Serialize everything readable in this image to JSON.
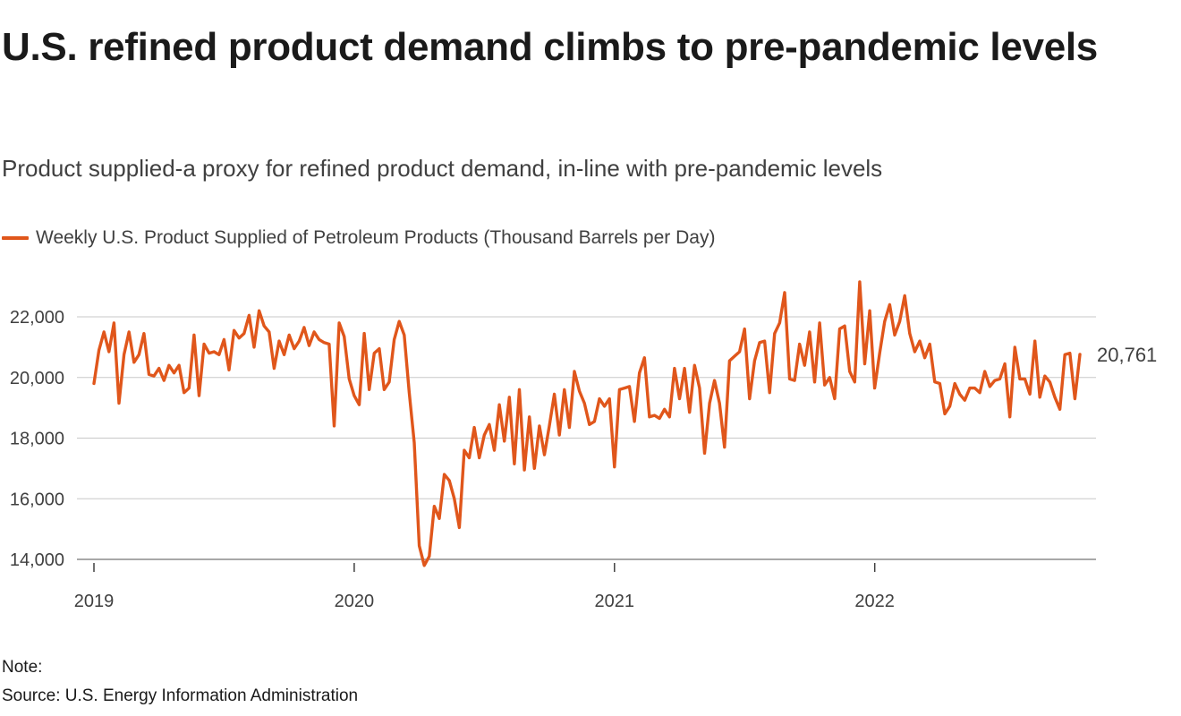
{
  "header": {
    "title": "U.S. refined product demand climbs to pre-pandemic levels",
    "subtitle": "Product supplied-a proxy for refined product demand, in-line with pre-pandemic levels"
  },
  "legend": {
    "label": "Weekly U.S. Product Supplied of Petroleum Products (Thousand Barrels per Day)",
    "color": "#e0561b"
  },
  "chart_data": {
    "type": "line",
    "title": "U.S. refined product demand climbs to pre-pandemic levels",
    "xlabel": "",
    "ylabel": "",
    "xlim": [
      2019.0,
      2022.9
    ],
    "ylim": [
      14000,
      22600
    ],
    "yticks": [
      14000,
      16000,
      18000,
      20000,
      22000
    ],
    "ytick_labels": [
      "14,000",
      "16,000",
      "18,000",
      "20,000",
      "22,000"
    ],
    "xticks": [
      2019,
      2020,
      2021,
      2022
    ],
    "xtick_labels": [
      "2019",
      "2020",
      "2021",
      "2022"
    ],
    "grid": true,
    "end_label": "20,761",
    "series": [
      {
        "name": "Weekly U.S. Product Supplied of Petroleum Products (Thousand Barrels per Day)",
        "color": "#e0561b",
        "x_start": 2019.0,
        "x_step": 0.01923,
        "values": [
          19800,
          20900,
          21500,
          20850,
          21800,
          19150,
          20750,
          21500,
          20500,
          20750,
          21450,
          20100,
          20050,
          20300,
          19900,
          20400,
          20150,
          20400,
          19500,
          19650,
          21400,
          19400,
          21100,
          20800,
          20850,
          20750,
          21250,
          20250,
          21550,
          21300,
          21450,
          22050,
          21000,
          22200,
          21700,
          21500,
          20300,
          21200,
          20750,
          21400,
          20950,
          21200,
          21650,
          21050,
          21500,
          21250,
          21150,
          21100,
          18400,
          21800,
          21350,
          19950,
          19400,
          19100,
          21450,
          19600,
          20800,
          20950,
          19600,
          19850,
          21250,
          21850,
          21400,
          19500,
          17850,
          14450,
          13800,
          14100,
          15750,
          15350,
          16800,
          16600,
          16000,
          15050,
          17600,
          17350,
          18350,
          17350,
          18100,
          18450,
          17600,
          19100,
          17900,
          19350,
          17150,
          19600,
          16950,
          18700,
          17000,
          18400,
          17450,
          18400,
          19450,
          18100,
          19600,
          18350,
          20200,
          19550,
          19150,
          18450,
          18550,
          19300,
          19050,
          19300,
          17050,
          19600,
          19650,
          19700,
          18550,
          20150,
          20650,
          18700,
          18750,
          18650,
          18950,
          18700,
          20300,
          19300,
          20300,
          18850,
          20400,
          19650,
          17500,
          19150,
          19900,
          19150,
          17700,
          20550,
          20700,
          20850,
          21600,
          19300,
          20550,
          21150,
          21200,
          19500,
          21450,
          21800,
          22800,
          19950,
          19900,
          21100,
          20400,
          21500,
          19850,
          21800,
          19750,
          20000,
          19300,
          21600,
          21700,
          20200,
          19850,
          23150,
          20450,
          22200,
          19650,
          20800,
          21850,
          22400,
          21400,
          21850,
          22700,
          21450,
          20850,
          21200,
          20650,
          21100,
          19850,
          19800,
          18800,
          19050,
          19800,
          19450,
          19250,
          19650,
          19650,
          19500,
          20200,
          19700,
          19900,
          19950,
          20450,
          18700,
          21000,
          19950,
          19950,
          19450,
          21200,
          19350,
          20050,
          19850,
          19350,
          18950,
          20750,
          20800,
          19300,
          20761
        ]
      }
    ]
  },
  "footer": {
    "note": "Note:",
    "source": "Source: U.S. Energy Information Administration"
  }
}
